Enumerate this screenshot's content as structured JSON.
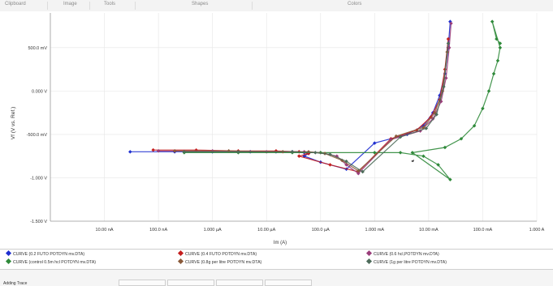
{
  "ribbon": {
    "groups": [
      "Clipboard",
      "Image",
      "Tools",
      "Shapes",
      "Colors"
    ]
  },
  "status": {
    "message": "Adding Trace"
  },
  "chart_data": {
    "type": "scatter",
    "xscale": "log",
    "xlabel": "Im (A)",
    "ylabel": "Vf (V vs. Ref.)",
    "xlim": [
      1e-09,
      1
    ],
    "ylim": [
      -1.5,
      0.9
    ],
    "x_ticks": [
      "10.00 nA",
      "100.0 nA",
      "1.000 µA",
      "10.00 µA",
      "100.0 µA",
      "1.000 mA",
      "10.00 mA",
      "100.0 mA",
      "1.000 A"
    ],
    "x_tick_values": [
      1e-08,
      1e-07,
      1e-06,
      1e-05,
      0.0001,
      0.001,
      0.01,
      0.1,
      1
    ],
    "y_ticks": [
      "500.0 mV",
      "0.000 V",
      "-500.0 mV",
      "-1.000 V",
      "-1.500 V"
    ],
    "y_tick_values": [
      0.5,
      0.0,
      -0.5,
      -1.0,
      -1.5
    ],
    "grid": true,
    "legend_position": "bottom",
    "series": [
      {
        "name": "CURVE (0.2 FUTO POTDYN mv.DTA)",
        "color": "#1f2fd0",
        "marker": "diamond",
        "x": [
          3e-08,
          2e-07,
          1e-06,
          5e-06,
          1.5e-05,
          3e-05,
          5e-05,
          6e-05,
          5e-05,
          0.0001,
          0.0003,
          0.001,
          0.004,
          0.008,
          0.012,
          0.016,
          0.02,
          0.023,
          0.025
        ],
        "y": [
          -0.7,
          -0.7,
          -0.7,
          -0.7,
          -0.7,
          -0.7,
          -0.71,
          -0.72,
          -0.75,
          -0.82,
          -0.9,
          -0.6,
          -0.5,
          -0.4,
          -0.25,
          -0.05,
          0.2,
          0.5,
          0.8
        ]
      },
      {
        "name": "CURVE (0.4 FUTO POTDYN mv.DTA)",
        "color": "#c41e1e",
        "marker": "diamond",
        "x": [
          8e-08,
          5e-07,
          3e-06,
          1.5e-05,
          4e-05,
          6e-05,
          4e-05,
          0.00015,
          0.0005,
          0.002,
          0.006,
          0.011,
          0.016,
          0.02,
          0.023
        ],
        "y": [
          -0.68,
          -0.68,
          -0.69,
          -0.69,
          -0.7,
          -0.72,
          -0.75,
          -0.85,
          -0.93,
          -0.55,
          -0.45,
          -0.3,
          -0.1,
          0.25,
          0.6
        ]
      },
      {
        "name": "CURVE (0.6 hcl,POTDYN mv.DTA)",
        "color": "#9a3d7a",
        "marker": "diamond",
        "x": [
          1e-07,
          1e-06,
          1e-05,
          5e-05,
          0.0001,
          0.0002,
          0.0003,
          0.0005,
          0.002,
          0.007,
          0.012,
          0.017,
          0.021,
          0.024,
          0.026
        ],
        "y": [
          -0.69,
          -0.69,
          -0.7,
          -0.7,
          -0.71,
          -0.75,
          -0.85,
          -0.95,
          -0.56,
          -0.46,
          -0.32,
          -0.12,
          0.15,
          0.5,
          0.78
        ]
      },
      {
        "name": "CURVE (control 0.5m hcl POTDYN mv.DTA)",
        "color": "#2f8a3a",
        "marker": "diamond",
        "x": [
          3e-07,
          3e-06,
          3e-05,
          0.0001,
          0.001,
          0.003,
          0.008,
          0.015,
          0.025,
          0.005,
          0.02,
          0.04,
          0.07,
          0.1,
          0.13,
          0.16,
          0.19,
          0.21,
          0.15,
          0.18,
          0.21
        ],
        "y": [
          -0.71,
          -0.71,
          -0.71,
          -0.71,
          -0.71,
          -0.71,
          -0.75,
          -0.85,
          -1.02,
          -0.71,
          -0.65,
          -0.55,
          -0.4,
          -0.2,
          0.0,
          0.2,
          0.35,
          0.5,
          0.8,
          0.6,
          0.55
        ]
      },
      {
        "name": "CURVE (0.8g per litre POTDYN mv.DTA)",
        "color": "#8a5a3a",
        "marker": "diamond",
        "x": [
          2e-07,
          2e-06,
          2e-05,
          6e-05,
          0.00012,
          0.00025,
          0.0005,
          0.0025,
          0.008,
          0.013,
          0.018,
          0.022
        ],
        "y": [
          -0.69,
          -0.69,
          -0.7,
          -0.7,
          -0.72,
          -0.8,
          -0.92,
          -0.52,
          -0.42,
          -0.25,
          0.0,
          0.45
        ]
      },
      {
        "name": "CURVE (1g per litre POTDYN mv.DTA)",
        "color": "#4d6b5a",
        "marker": "diamond",
        "x": [
          3e-07,
          3e-06,
          3e-05,
          8e-05,
          0.00015,
          0.0003,
          0.0006,
          0.003,
          0.009,
          0.014,
          0.019,
          0.023
        ],
        "y": [
          -0.7,
          -0.7,
          -0.7,
          -0.71,
          -0.73,
          -0.81,
          -0.93,
          -0.53,
          -0.43,
          -0.27,
          0.05,
          0.55
        ]
      }
    ]
  }
}
